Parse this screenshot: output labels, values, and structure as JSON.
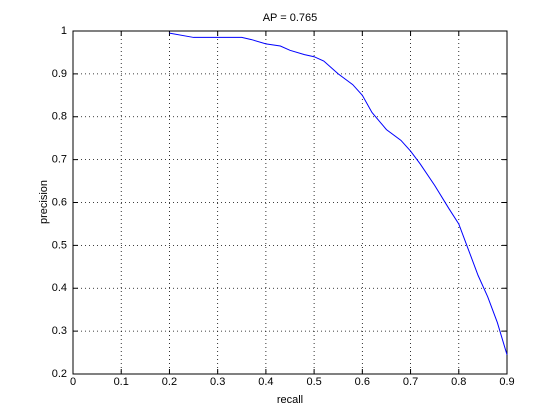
{
  "chart_data": {
    "type": "line",
    "title": "AP = 0.765",
    "x_label": "recall",
    "y_label": "precision",
    "x": [
      0.2,
      0.25,
      0.3,
      0.35,
      0.37,
      0.4,
      0.43,
      0.45,
      0.48,
      0.5,
      0.52,
      0.55,
      0.58,
      0.6,
      0.62,
      0.65,
      0.68,
      0.7,
      0.72,
      0.75,
      0.78,
      0.8,
      0.82,
      0.84,
      0.86,
      0.88,
      0.9
    ],
    "series": [
      {
        "name": "precision",
        "color": "#0000ff",
        "values": [
          0.995,
          0.985,
          0.985,
          0.985,
          0.98,
          0.97,
          0.965,
          0.955,
          0.945,
          0.94,
          0.93,
          0.9,
          0.875,
          0.85,
          0.81,
          0.77,
          0.745,
          0.72,
          0.69,
          0.64,
          0.585,
          0.55,
          0.49,
          0.43,
          0.38,
          0.32,
          0.245
        ]
      }
    ],
    "xlim": [
      0,
      0.9
    ],
    "ylim": [
      0.2,
      1
    ],
    "xticks": [
      0,
      0.1,
      0.2,
      0.3,
      0.4,
      0.5,
      0.6,
      0.7,
      0.8,
      0.9
    ],
    "yticks": [
      0.2,
      0.3,
      0.4,
      0.5,
      0.6,
      0.7,
      0.8,
      0.9,
      1
    ],
    "grid": true
  }
}
